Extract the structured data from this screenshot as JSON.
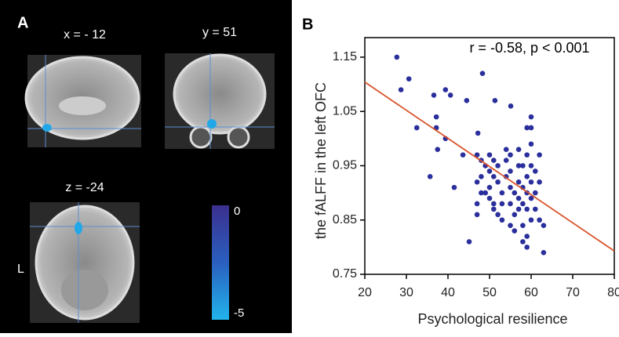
{
  "panel_a": {
    "label": "A",
    "slices": [
      {
        "label": "x = - 12"
      },
      {
        "label": "y = 51"
      },
      {
        "label": "z = -24"
      }
    ],
    "side_label": "L",
    "colorbar": {
      "lim": [
        -5,
        0
      ],
      "ticks": [
        0,
        -5
      ]
    }
  },
  "chart_data": {
    "type": "scatter",
    "panel_label": "B",
    "annotation": "r = -0.58, p < 0.001",
    "x_label": "Psychological resilience",
    "y_label": "the fALFF in the left OFC",
    "x": [
      27.7,
      28.7,
      30.6,
      32.5,
      36.6,
      39.4,
      40.6,
      37.2,
      37.2,
      37.5,
      39.4,
      35.7,
      44.5,
      48.3,
      51.3,
      55.1,
      47.2,
      41.5,
      43.6,
      45.1,
      47,
      48,
      48,
      47,
      48,
      47,
      47,
      49,
      50,
      50,
      51,
      51,
      50,
      50,
      51,
      52,
      52,
      52,
      53,
      53,
      53,
      54,
      54,
      54,
      55,
      55,
      55,
      55,
      56,
      56,
      56,
      57,
      57,
      57,
      57,
      57,
      58,
      58,
      58,
      58,
      58,
      59,
      59,
      59,
      59,
      59,
      59,
      60,
      60,
      60,
      60,
      60,
      60,
      60,
      61,
      61,
      61,
      62,
      62,
      62,
      63,
      63,
      59,
      55,
      51,
      49
    ],
    "y": [
      1.15,
      1.09,
      1.11,
      1.02,
      1.08,
      1.09,
      1.08,
      1.04,
      1.02,
      0.98,
      1.0,
      0.93,
      1.07,
      1.12,
      1.07,
      1.06,
      1.01,
      0.91,
      0.97,
      0.81,
      0.97,
      0.96,
      0.93,
      0.92,
      0.9,
      0.88,
      0.86,
      0.95,
      0.97,
      0.94,
      0.96,
      0.93,
      0.91,
      0.89,
      0.88,
      0.95,
      0.92,
      0.86,
      0.9,
      0.88,
      0.85,
      0.98,
      0.96,
      0.93,
      0.97,
      0.94,
      0.91,
      0.88,
      0.9,
      0.86,
      0.83,
      0.98,
      0.95,
      0.92,
      0.89,
      0.87,
      0.95,
      0.91,
      0.88,
      0.84,
      0.81,
      1.02,
      0.97,
      0.93,
      0.9,
      0.87,
      0.82,
      1.04,
      1.02,
      0.99,
      0.95,
      0.92,
      0.89,
      0.85,
      0.94,
      0.9,
      0.87,
      0.97,
      0.92,
      0.85,
      0.84,
      0.79,
      0.8,
      0.84,
      0.87,
      0.9
    ],
    "color": "#2b2f9c",
    "fit": {
      "x": [
        20,
        80
      ],
      "y": [
        1.104,
        0.793
      ],
      "color": "#d9542b"
    },
    "xlim": [
      20,
      80
    ],
    "ylim": [
      0.75,
      1.186
    ],
    "xticks": [
      20,
      30,
      40,
      50,
      60,
      70,
      80
    ],
    "yticks": [
      0.75,
      0.85,
      0.95,
      1.05,
      1.15
    ]
  }
}
